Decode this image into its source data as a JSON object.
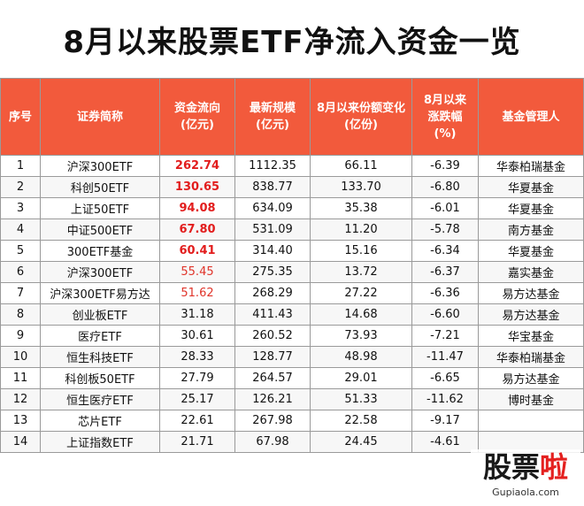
{
  "title": "8月以来股票ETF净流入资金一览",
  "header": {
    "col1": [
      "序号"
    ],
    "col2": [
      "证券简称"
    ],
    "col3": [
      "资金流向",
      "(亿元)"
    ],
    "col4": [
      "最新规模",
      "(亿元)"
    ],
    "col5": [
      "8月以来份额变化",
      "(亿份)"
    ],
    "col6": [
      "8月以来",
      "涨跌幅",
      "(%)"
    ],
    "col7": [
      "基金管理人"
    ]
  },
  "rows": [
    {
      "no": "1",
      "name": "沪深300ETF",
      "flow": "262.74",
      "scale": "1112.35",
      "share": "66.11",
      "pct": "-6.39",
      "mgr": "华泰柏瑞基金",
      "hl": "bold"
    },
    {
      "no": "2",
      "name": "科创50ETF",
      "flow": "130.65",
      "scale": "838.77",
      "share": "133.70",
      "pct": "-6.80",
      "mgr": "华夏基金",
      "hl": "bold"
    },
    {
      "no": "3",
      "name": "上证50ETF",
      "flow": "94.08",
      "scale": "634.09",
      "share": "35.38",
      "pct": "-6.01",
      "mgr": "华夏基金",
      "hl": "bold"
    },
    {
      "no": "4",
      "name": "中证500ETF",
      "flow": "67.80",
      "scale": "531.09",
      "share": "11.20",
      "pct": "-5.78",
      "mgr": "南方基金",
      "hl": "bold"
    },
    {
      "no": "5",
      "name": "300ETF基金",
      "flow": "60.41",
      "scale": "314.40",
      "share": "15.16",
      "pct": "-6.34",
      "mgr": "华夏基金",
      "hl": "bold"
    },
    {
      "no": "6",
      "name": "沪深300ETF",
      "flow": "55.45",
      "scale": "275.35",
      "share": "13.72",
      "pct": "-6.37",
      "mgr": "嘉实基金",
      "hl": "light"
    },
    {
      "no": "7",
      "name": "沪深300ETF易方达",
      "flow": "51.62",
      "scale": "268.29",
      "share": "27.22",
      "pct": "-6.36",
      "mgr": "易方达基金",
      "hl": "light"
    },
    {
      "no": "8",
      "name": "创业板ETF",
      "flow": "31.18",
      "scale": "411.43",
      "share": "14.68",
      "pct": "-6.60",
      "mgr": "易方达基金",
      "hl": "none"
    },
    {
      "no": "9",
      "name": "医疗ETF",
      "flow": "30.61",
      "scale": "260.52",
      "share": "73.93",
      "pct": "-7.21",
      "mgr": "华宝基金",
      "hl": "none"
    },
    {
      "no": "10",
      "name": "恒生科技ETF",
      "flow": "28.33",
      "scale": "128.77",
      "share": "48.98",
      "pct": "-11.47",
      "mgr": "华泰柏瑞基金",
      "hl": "none"
    },
    {
      "no": "11",
      "name": "科创板50ETF",
      "flow": "27.79",
      "scale": "264.57",
      "share": "29.01",
      "pct": "-6.65",
      "mgr": "易方达基金",
      "hl": "none"
    },
    {
      "no": "12",
      "name": "恒生医疗ETF",
      "flow": "25.17",
      "scale": "126.21",
      "share": "51.33",
      "pct": "-11.62",
      "mgr": "博时基金",
      "hl": "none"
    },
    {
      "no": "13",
      "name": "芯片ETF",
      "flow": "22.61",
      "scale": "267.98",
      "share": "22.58",
      "pct": "-9.17",
      "mgr": "",
      "hl": "none"
    },
    {
      "no": "14",
      "name": "上证指数ETF",
      "flow": "21.71",
      "scale": "67.98",
      "share": "24.45",
      "pct": "-4.61",
      "mgr": "",
      "hl": "none"
    }
  ],
  "watermark": {
    "a": "股票",
    "b": "啦",
    "url": "Gupiaola.com"
  },
  "colors": {
    "header_bg": "#f25a3c",
    "highlight": "#e21d1d"
  }
}
